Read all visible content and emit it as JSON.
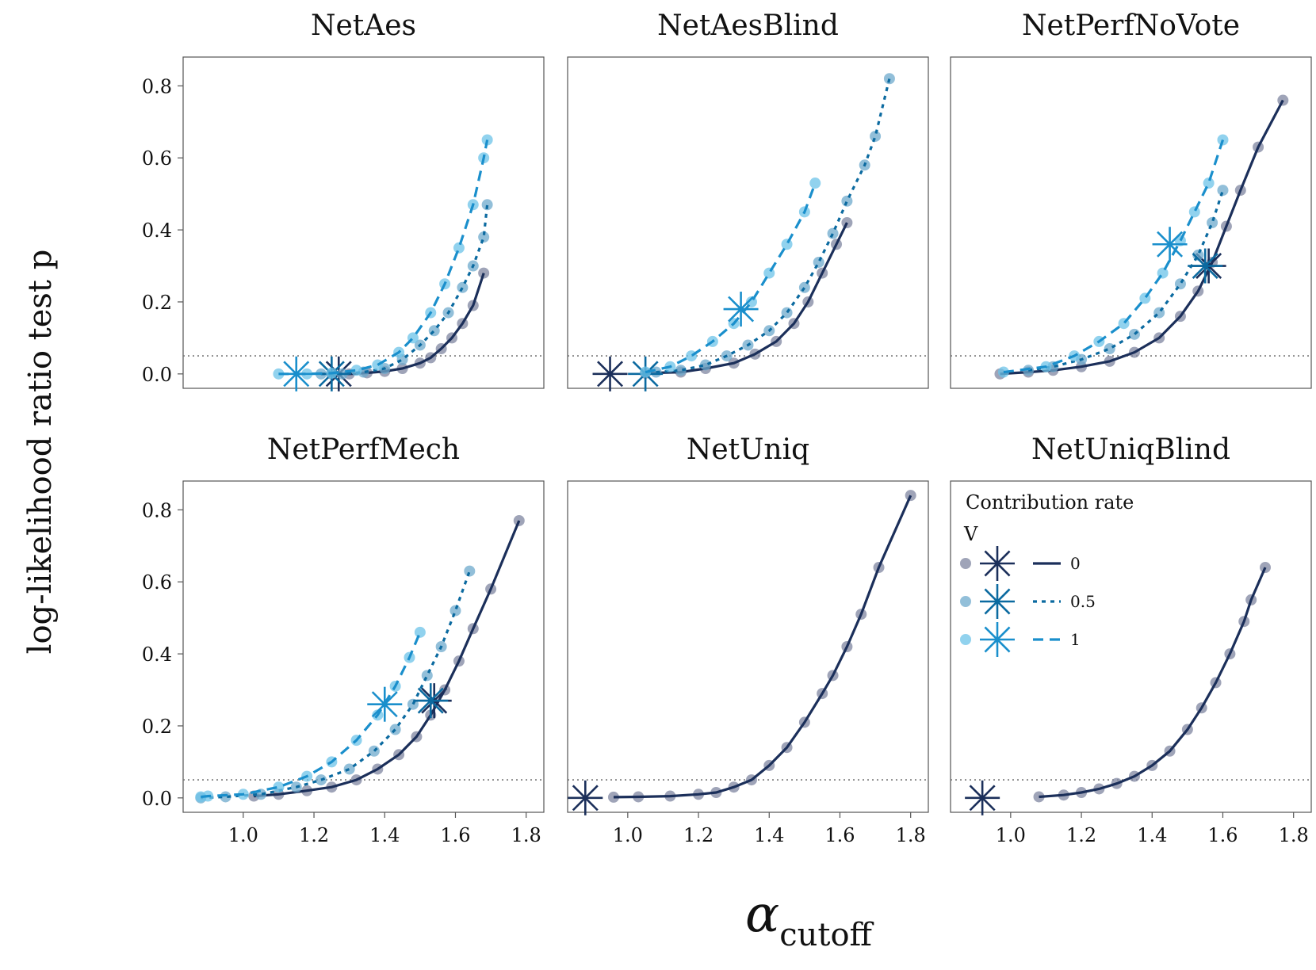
{
  "figure": {
    "ylabel": "log-likelihood ratio test p",
    "xlabel_main": "α",
    "xlabel_sub": "cutoff"
  },
  "legend": {
    "title": "Contribution rate",
    "subtitle": "V",
    "entries": [
      {
        "label": "0",
        "color": "#1b2f5a",
        "line": "solid"
      },
      {
        "label": "0.5",
        "color": "#0b6aa0",
        "line": "dotted"
      },
      {
        "label": "1",
        "color": "#1a8fcc",
        "line": "dashed"
      }
    ]
  },
  "colors": {
    "v0": "#1b2f5a",
    "v05": "#0b6aa0",
    "v1": "#1a8fcc",
    "pt_v0": "#7f86a0",
    "pt_v05": "#6ea9cc",
    "pt_v1": "#6cc3e8",
    "hline": "#777777",
    "axis": "#555555"
  },
  "chart_data": [
    {
      "type": "scatter",
      "title": "NetAes",
      "xlim": [
        0.83,
        1.85
      ],
      "ylim": [
        -0.04,
        0.88
      ],
      "xticks": [
        "1.0",
        "1.2",
        "1.4",
        "1.6",
        "1.8"
      ],
      "yticks": [
        "0.0",
        "0.2",
        "0.4",
        "0.6",
        "0.8"
      ],
      "show_x": false,
      "show_y": true,
      "hline": 0.05,
      "series": [
        {
          "name": "0",
          "x": [
            1.25,
            1.3,
            1.35,
            1.4,
            1.45,
            1.5,
            1.53,
            1.56,
            1.59,
            1.62,
            1.65,
            1.68
          ],
          "y": [
            0.0,
            0.0,
            0.003,
            0.007,
            0.015,
            0.03,
            0.045,
            0.07,
            0.1,
            0.14,
            0.19,
            0.28
          ],
          "star": [
            1.27,
            0.0
          ]
        },
        {
          "name": "0.5",
          "x": [
            1.22,
            1.28,
            1.34,
            1.4,
            1.45,
            1.5,
            1.54,
            1.58,
            1.62,
            1.65,
            1.68,
            1.69
          ],
          "y": [
            0.0,
            0.0,
            0.005,
            0.015,
            0.04,
            0.08,
            0.12,
            0.17,
            0.24,
            0.3,
            0.38,
            0.47
          ],
          "star": [
            1.25,
            0.0
          ]
        },
        {
          "name": "1",
          "x": [
            1.1,
            1.18,
            1.25,
            1.32,
            1.38,
            1.44,
            1.48,
            1.53,
            1.57,
            1.61,
            1.65,
            1.68,
            1.69
          ],
          "y": [
            0.0,
            0.0,
            0.002,
            0.01,
            0.025,
            0.06,
            0.1,
            0.17,
            0.25,
            0.35,
            0.47,
            0.6,
            0.65
          ],
          "star": [
            1.15,
            0.0
          ]
        }
      ]
    },
    {
      "type": "scatter",
      "title": "NetAesBlind",
      "xlim": [
        0.83,
        1.85
      ],
      "ylim": [
        -0.04,
        0.88
      ],
      "xticks": [
        "1.0",
        "1.2",
        "1.4",
        "1.6",
        "1.8"
      ],
      "yticks": [
        "0.0",
        "0.2",
        "0.4",
        "0.6",
        "0.8"
      ],
      "show_x": false,
      "show_y": false,
      "hline": 0.05,
      "series": [
        {
          "name": "0",
          "x": [
            1.05,
            1.15,
            1.22,
            1.3,
            1.36,
            1.42,
            1.47,
            1.51,
            1.55,
            1.59,
            1.62
          ],
          "y": [
            0.002,
            0.005,
            0.015,
            0.03,
            0.055,
            0.09,
            0.14,
            0.2,
            0.28,
            0.36,
            0.42
          ],
          "star": [
            0.95,
            0.0
          ]
        },
        {
          "name": "0.5",
          "x": [
            1.08,
            1.15,
            1.22,
            1.28,
            1.34,
            1.4,
            1.45,
            1.5,
            1.54,
            1.58,
            1.62,
            1.67,
            1.7,
            1.74
          ],
          "y": [
            0.005,
            0.01,
            0.025,
            0.05,
            0.08,
            0.12,
            0.17,
            0.24,
            0.31,
            0.39,
            0.48,
            0.58,
            0.66,
            0.82
          ],
          "star": [
            1.05,
            0.0
          ]
        },
        {
          "name": "1",
          "x": [
            1.05,
            1.12,
            1.18,
            1.24,
            1.3,
            1.35,
            1.4,
            1.45,
            1.5,
            1.53
          ],
          "y": [
            0.005,
            0.02,
            0.05,
            0.09,
            0.14,
            0.2,
            0.28,
            0.36,
            0.45,
            0.53
          ],
          "star": [
            1.32,
            0.18
          ]
        }
      ]
    },
    {
      "type": "scatter",
      "title": "NetPerfNoVote",
      "xlim": [
        0.83,
        1.85
      ],
      "ylim": [
        -0.04,
        0.88
      ],
      "xticks": [
        "1.0",
        "1.2",
        "1.4",
        "1.6",
        "1.8"
      ],
      "yticks": [
        "0.0",
        "0.2",
        "0.4",
        "0.6",
        "0.8"
      ],
      "show_x": false,
      "show_y": false,
      "hline": 0.05,
      "series": [
        {
          "name": "0",
          "x": [
            0.97,
            1.05,
            1.12,
            1.2,
            1.28,
            1.35,
            1.42,
            1.48,
            1.53,
            1.57,
            1.61,
            1.65,
            1.7,
            1.77
          ],
          "y": [
            0.0,
            0.005,
            0.01,
            0.02,
            0.035,
            0.06,
            0.1,
            0.16,
            0.23,
            0.31,
            0.41,
            0.51,
            0.63,
            0.76
          ],
          "star": [
            1.56,
            0.3
          ]
        },
        {
          "name": "0.5",
          "x": [
            1.05,
            1.12,
            1.2,
            1.28,
            1.35,
            1.42,
            1.48,
            1.53,
            1.57,
            1.6
          ],
          "y": [
            0.01,
            0.02,
            0.04,
            0.07,
            0.11,
            0.17,
            0.25,
            0.33,
            0.42,
            0.51
          ],
          "star": [
            1.55,
            0.3
          ]
        },
        {
          "name": "1",
          "x": [
            0.98,
            1.1,
            1.18,
            1.25,
            1.32,
            1.38,
            1.43,
            1.48,
            1.52,
            1.56,
            1.6
          ],
          "y": [
            0.005,
            0.02,
            0.05,
            0.09,
            0.14,
            0.21,
            0.28,
            0.37,
            0.45,
            0.53,
            0.65
          ],
          "star": [
            1.45,
            0.36
          ]
        }
      ]
    },
    {
      "type": "scatter",
      "title": "NetPerfMech",
      "xlim": [
        0.83,
        1.85
      ],
      "ylim": [
        -0.04,
        0.88
      ],
      "xticks": [
        "1.0",
        "1.2",
        "1.4",
        "1.6",
        "1.8"
      ],
      "yticks": [
        "0.0",
        "0.2",
        "0.4",
        "0.6",
        "0.8"
      ],
      "show_x": true,
      "show_y": true,
      "hline": 0.05,
      "series": [
        {
          "name": "0",
          "x": [
            1.03,
            1.1,
            1.18,
            1.25,
            1.32,
            1.38,
            1.44,
            1.49,
            1.53,
            1.57,
            1.61,
            1.65,
            1.7,
            1.78
          ],
          "y": [
            0.005,
            0.01,
            0.02,
            0.03,
            0.05,
            0.08,
            0.12,
            0.17,
            0.23,
            0.3,
            0.38,
            0.47,
            0.58,
            0.77
          ],
          "star": [
            1.54,
            0.27
          ]
        },
        {
          "name": "0.5",
          "x": [
            0.88,
            0.95,
            1.05,
            1.15,
            1.22,
            1.3,
            1.37,
            1.43,
            1.48,
            1.52,
            1.56,
            1.6,
            1.64
          ],
          "y": [
            0.0,
            0.003,
            0.01,
            0.03,
            0.05,
            0.08,
            0.13,
            0.19,
            0.26,
            0.34,
            0.42,
            0.52,
            0.63
          ],
          "star": [
            1.53,
            0.27
          ]
        },
        {
          "name": "1",
          "x": [
            0.88,
            0.9,
            1.0,
            1.1,
            1.18,
            1.25,
            1.32,
            1.38,
            1.43,
            1.47,
            1.5
          ],
          "y": [
            0.003,
            0.005,
            0.01,
            0.03,
            0.06,
            0.1,
            0.16,
            0.23,
            0.31,
            0.39,
            0.46
          ],
          "star": [
            1.4,
            0.26
          ]
        }
      ]
    },
    {
      "type": "scatter",
      "title": "NetUniq",
      "xlim": [
        0.83,
        1.85
      ],
      "ylim": [
        -0.04,
        0.88
      ],
      "xticks": [
        "1.0",
        "1.2",
        "1.4",
        "1.6",
        "1.8"
      ],
      "yticks": [
        "0.0",
        "0.2",
        "0.4",
        "0.6",
        "0.8"
      ],
      "show_x": true,
      "show_y": false,
      "hline": 0.05,
      "series": [
        {
          "name": "0",
          "x": [
            0.96,
            1.03,
            1.12,
            1.2,
            1.25,
            1.3,
            1.35,
            1.4,
            1.45,
            1.5,
            1.55,
            1.58,
            1.62,
            1.66,
            1.71,
            1.8
          ],
          "y": [
            0.002,
            0.003,
            0.005,
            0.01,
            0.015,
            0.03,
            0.05,
            0.09,
            0.14,
            0.21,
            0.29,
            0.34,
            0.42,
            0.51,
            0.64,
            0.84
          ],
          "star": [
            0.88,
            0.0
          ]
        }
      ]
    },
    {
      "type": "scatter",
      "title": "NetUniqBlind",
      "xlim": [
        0.83,
        1.85
      ],
      "ylim": [
        -0.04,
        0.88
      ],
      "xticks": [
        "1.0",
        "1.2",
        "1.4",
        "1.6",
        "1.8"
      ],
      "yticks": [
        "0.0",
        "0.2",
        "0.4",
        "0.6",
        "0.8"
      ],
      "show_x": true,
      "show_y": false,
      "hline": 0.05,
      "series": [
        {
          "name": "0",
          "x": [
            1.08,
            1.15,
            1.2,
            1.25,
            1.3,
            1.35,
            1.4,
            1.45,
            1.5,
            1.54,
            1.58,
            1.62,
            1.66,
            1.68,
            1.72
          ],
          "y": [
            0.003,
            0.008,
            0.015,
            0.025,
            0.04,
            0.06,
            0.09,
            0.13,
            0.19,
            0.25,
            0.32,
            0.4,
            0.49,
            0.55,
            0.64
          ],
          "star": [
            0.92,
            0.0
          ]
        }
      ]
    }
  ]
}
